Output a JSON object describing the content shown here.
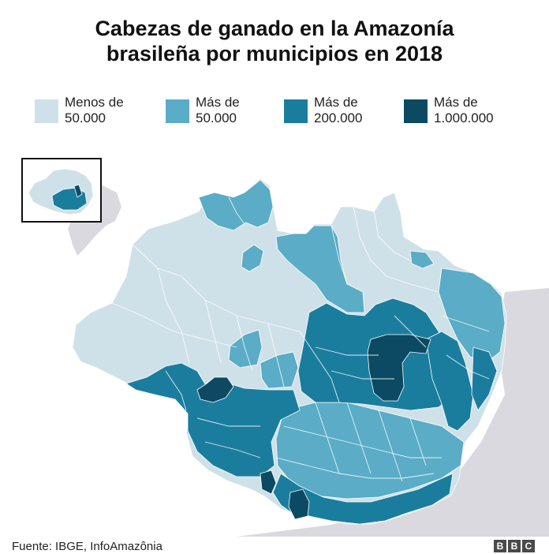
{
  "title": {
    "line1": "Cabezas de ganado en la Amazonía",
    "line2": "brasileña por municipios en 2018"
  },
  "legend": [
    {
      "line1": "Menos de",
      "line2": "50.000",
      "color": "#cfe1e8"
    },
    {
      "line1": "Más de",
      "line2": "50.000",
      "color": "#5aacc7"
    },
    {
      "line1": "Más de",
      "line2": "200.000",
      "color": "#1b7d9e"
    },
    {
      "line1": "Más de",
      "line2": "1.000.000",
      "color": "#0b4a62"
    }
  ],
  "colors": {
    "low": "#cfe1e8",
    "mid": "#5aacc7",
    "high": "#1b7d9e",
    "top": "#0b4a62",
    "neighbor_land": "#d9d9df",
    "background": "#ffffff"
  },
  "inset": {
    "kind": "brazil-locator",
    "frame_color": "#111111"
  },
  "source": "Fuente: IBGE, InfoAmazônia",
  "logo": [
    "B",
    "B",
    "C"
  ]
}
